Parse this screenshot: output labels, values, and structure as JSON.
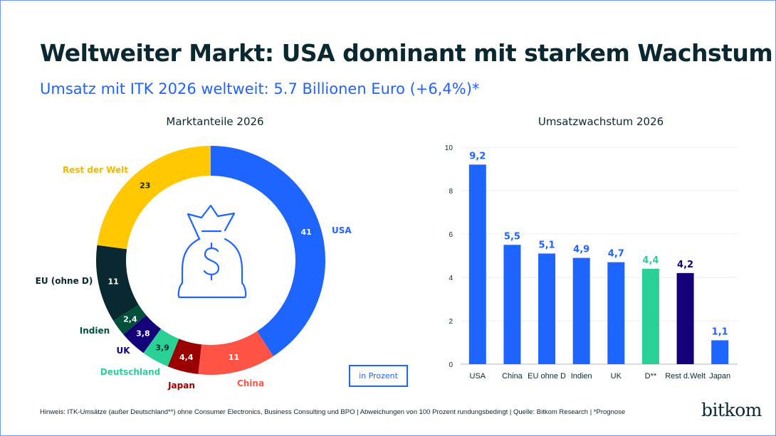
{
  "header": {
    "title": "Weltweiter Markt: USA dominant mit starkem Wachstum",
    "subtitle": "Umsatz mit ITK 2026 weltweit: 5.7 Billionen Euro (+6,4%)*"
  },
  "chart_data": [
    {
      "type": "pie",
      "variant": "donut",
      "title": "Marktanteile 2026",
      "unit_label": "in Prozent",
      "center_icon": "money-bag-dollar-icon",
      "slices": [
        {
          "label": "USA",
          "value": 41,
          "value_label": "41",
          "color": "#1e64ff"
        },
        {
          "label": "China",
          "value": 11,
          "value_label": "11",
          "color": "#ff5346"
        },
        {
          "label": "Japan",
          "value": 4.4,
          "value_label": "4,4",
          "color": "#9b0000"
        },
        {
          "label": "Deutschland",
          "value": 3.9,
          "value_label": "3,9",
          "color": "#2ad196"
        },
        {
          "label": "UK",
          "value": 3.8,
          "value_label": "3,8",
          "color": "#140078"
        },
        {
          "label": "Indien",
          "value": 2.4,
          "value_label": "2,4",
          "color": "#00503c"
        },
        {
          "label": "EU (ohne D)",
          "value": 11,
          "value_label": "11",
          "color": "#0a2830"
        },
        {
          "label": "Rest der Welt",
          "value": 23,
          "value_label": "23",
          "color": "#ffc800"
        }
      ]
    },
    {
      "type": "bar",
      "title": "Umsatzwachstum 2026",
      "ylim": [
        0,
        10
      ],
      "yticks": [
        "0",
        "2",
        "4",
        "6",
        "8",
        "10"
      ],
      "grid": true,
      "categories": [
        "USA",
        "China",
        "EU ohne D",
        "Indien",
        "UK",
        "D**",
        "Rest d.Welt",
        "Japan"
      ],
      "values": [
        9.2,
        5.5,
        5.1,
        4.9,
        4.7,
        4.4,
        4.2,
        1.1
      ],
      "value_labels": [
        "9,2",
        "5,5",
        "5,1",
        "4,9",
        "4,7",
        "4,4",
        "4,2",
        "1,1"
      ],
      "colors": [
        "#1e64ff",
        "#1e64ff",
        "#1e64ff",
        "#1e64ff",
        "#1e64ff",
        "#2ad196",
        "#140078",
        "#1e64ff"
      ]
    }
  ],
  "footer": {
    "note": "Hinweis: ITK-Umsätze (außer Deutschland**) ohne Consumer Electronics, Business Consulting und BPO | Abweichungen von 100 Prozent rundungsbedingt | Quelle: Bitkom Research | *Prognose",
    "logo": "bitkom"
  }
}
